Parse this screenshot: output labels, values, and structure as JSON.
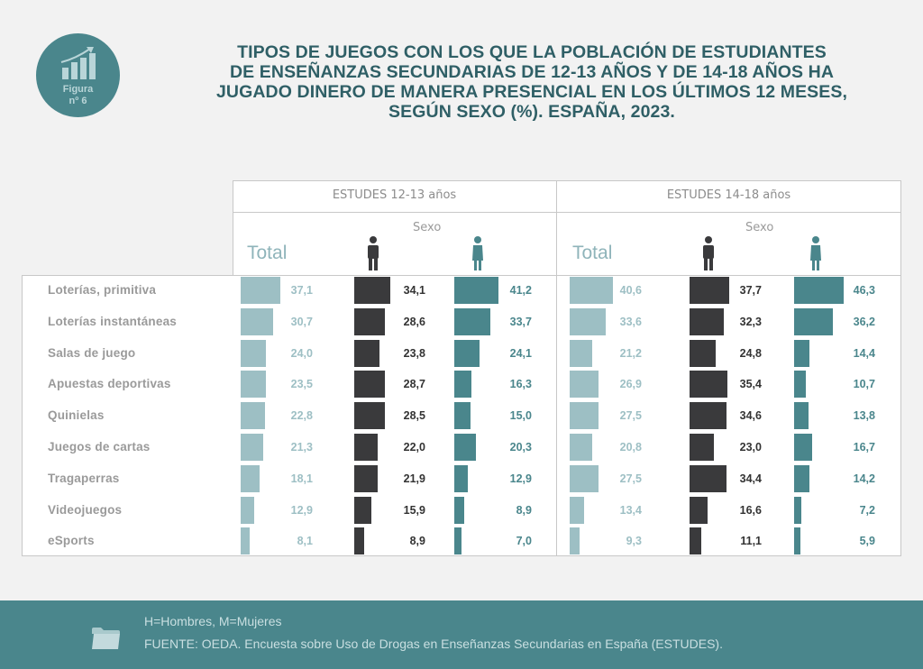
{
  "badge": {
    "label_line1": "Figura",
    "label_line2": "nº 6",
    "icon": "bar-chart-growth-icon"
  },
  "title_lines": [
    "TIPOS DE JUEGOS CON LOS QUE LA POBLACIÓN DE ESTUDIANTES",
    "DE ENSEÑANZAS SECUNDARIAS DE 12-13 AÑOS Y DE 14-18 AÑOS HA",
    "JUGADO DINERO DE MANERA PRESENCIAL EN LOS ÚLTIMOS 12 MESES,",
    "SEGÚN SEXO (%). ESPAÑA, 2023."
  ],
  "colors": {
    "total": "#9dbfc4",
    "men": "#3a3a3c",
    "women": "#4a868c",
    "title": "#2f5f66"
  },
  "chart_data": {
    "type": "bar",
    "title": "TIPOS DE JUEGOS CON LOS QUE LA POBLACIÓN DE ESTUDIANTES DE ENSEÑANZAS SECUNDARIAS DE 12-13 AÑOS Y DE 14-18 AÑOS HA JUGADO DINERO DE MANERA PRESENCIAL EN LOS ÚLTIMOS 12 MESES, SEGÚN SEXO (%). ESPAÑA, 2023.",
    "orientation": "horizontal",
    "unit": "%",
    "categories": [
      "Loterías, primitiva",
      "Loterías instantáneas",
      "Salas de juego",
      "Apuestas deportivas",
      "Quinielas",
      "Juegos de cartas",
      "Tragaperras",
      "Videojuegos",
      "eSports"
    ],
    "sexo_label": "Sexo",
    "total_label": "Total",
    "groups": [
      {
        "name": "ESTUDES 12-13 años",
        "series": [
          {
            "name": "Total",
            "values": [
              "37,1",
              "30,7",
              "24,0",
              "23,5",
              "22,8",
              "21,3",
              "18,1",
              "12,9",
              "8,1"
            ]
          },
          {
            "name": "Hombres",
            "values": [
              "34,1",
              "28,6",
              "23,8",
              "28,7",
              "28,5",
              "22,0",
              "21,9",
              "15,9",
              "8,9"
            ]
          },
          {
            "name": "Mujeres",
            "values": [
              "41,2",
              "33,7",
              "24,1",
              "16,3",
              "15,0",
              "20,3",
              "12,9",
              "8,9",
              "7,0"
            ]
          }
        ]
      },
      {
        "name": "ESTUDES 14-18 años",
        "series": [
          {
            "name": "Total",
            "values": [
              "40,6",
              "33,6",
              "21,2",
              "26,9",
              "27,5",
              "20,8",
              "27,5",
              "13,4",
              "9,3"
            ]
          },
          {
            "name": "Hombres",
            "values": [
              "37,7",
              "32,3",
              "24,8",
              "35,4",
              "34,6",
              "23,0",
              "34,4",
              "16,6",
              "11,1"
            ]
          },
          {
            "name": "Mujeres",
            "values": [
              "46,3",
              "36,2",
              "14,4",
              "10,7",
              "13,8",
              "16,7",
              "14,2",
              "7,2",
              "5,9"
            ]
          }
        ]
      }
    ]
  },
  "footer": {
    "legend_note": "H=Hombres, M=Mujeres",
    "source": "FUENTE: OEDA. Encuesta sobre Uso de Drogas en Enseñanzas Secundarias en España (ESTUDES).",
    "icon": "folder-icon"
  }
}
